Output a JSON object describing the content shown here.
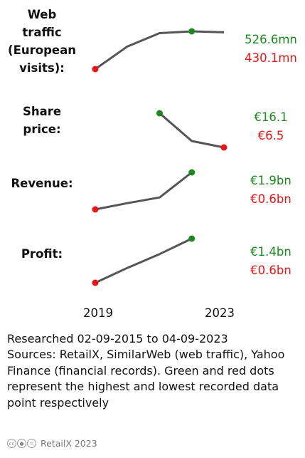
{
  "chart_data": [
    {
      "type": "line",
      "label_lines": [
        "Web",
        "traffic",
        "(European",
        "visits):"
      ],
      "x": [
        2019,
        2020,
        2021,
        2022,
        2023
      ],
      "values": [
        430.1,
        488,
        522,
        526.6,
        524
      ],
      "max_label": "526.6mn",
      "min_label": "430.1mn"
    },
    {
      "type": "line",
      "label_lines": [
        "Share",
        "price:"
      ],
      "x": [
        2021,
        2022,
        2023
      ],
      "values": [
        16.1,
        8.3,
        6.5
      ],
      "max_label": "€16.1",
      "min_label": "€6.5"
    },
    {
      "type": "line",
      "label_lines": [
        "Revenue:"
      ],
      "x": [
        2019,
        2020,
        2021,
        2022
      ],
      "values": [
        0.6,
        0.82,
        1.02,
        1.9
      ],
      "max_label": "€1.9bn",
      "min_label": "€0.6bn"
    },
    {
      "type": "line",
      "label_lines": [
        "Profit:"
      ],
      "x": [
        2019,
        2020,
        2021,
        2022
      ],
      "values": [
        0.6,
        0.87,
        1.12,
        1.4
      ],
      "max_label": "€1.4bn",
      "min_label": "€0.6bn"
    }
  ],
  "axis": {
    "start_label": "2019",
    "end_label": "2023"
  },
  "colors": {
    "line": "#555555",
    "high": "#1a8a1a",
    "low": "#e81515"
  },
  "notes": {
    "researched": "Researched 02-09-2015 to 04-09-2023",
    "sources": "Sources: RetailX, SimilarWeb (web traffic), Yahoo Finance (financial records). Green and red dots represent the highest and lowest recorded data point respectively"
  },
  "footer": {
    "license_icons": [
      "cc-icon",
      "by-icon",
      "nd-icon"
    ],
    "credit": "RetailX 2023"
  }
}
